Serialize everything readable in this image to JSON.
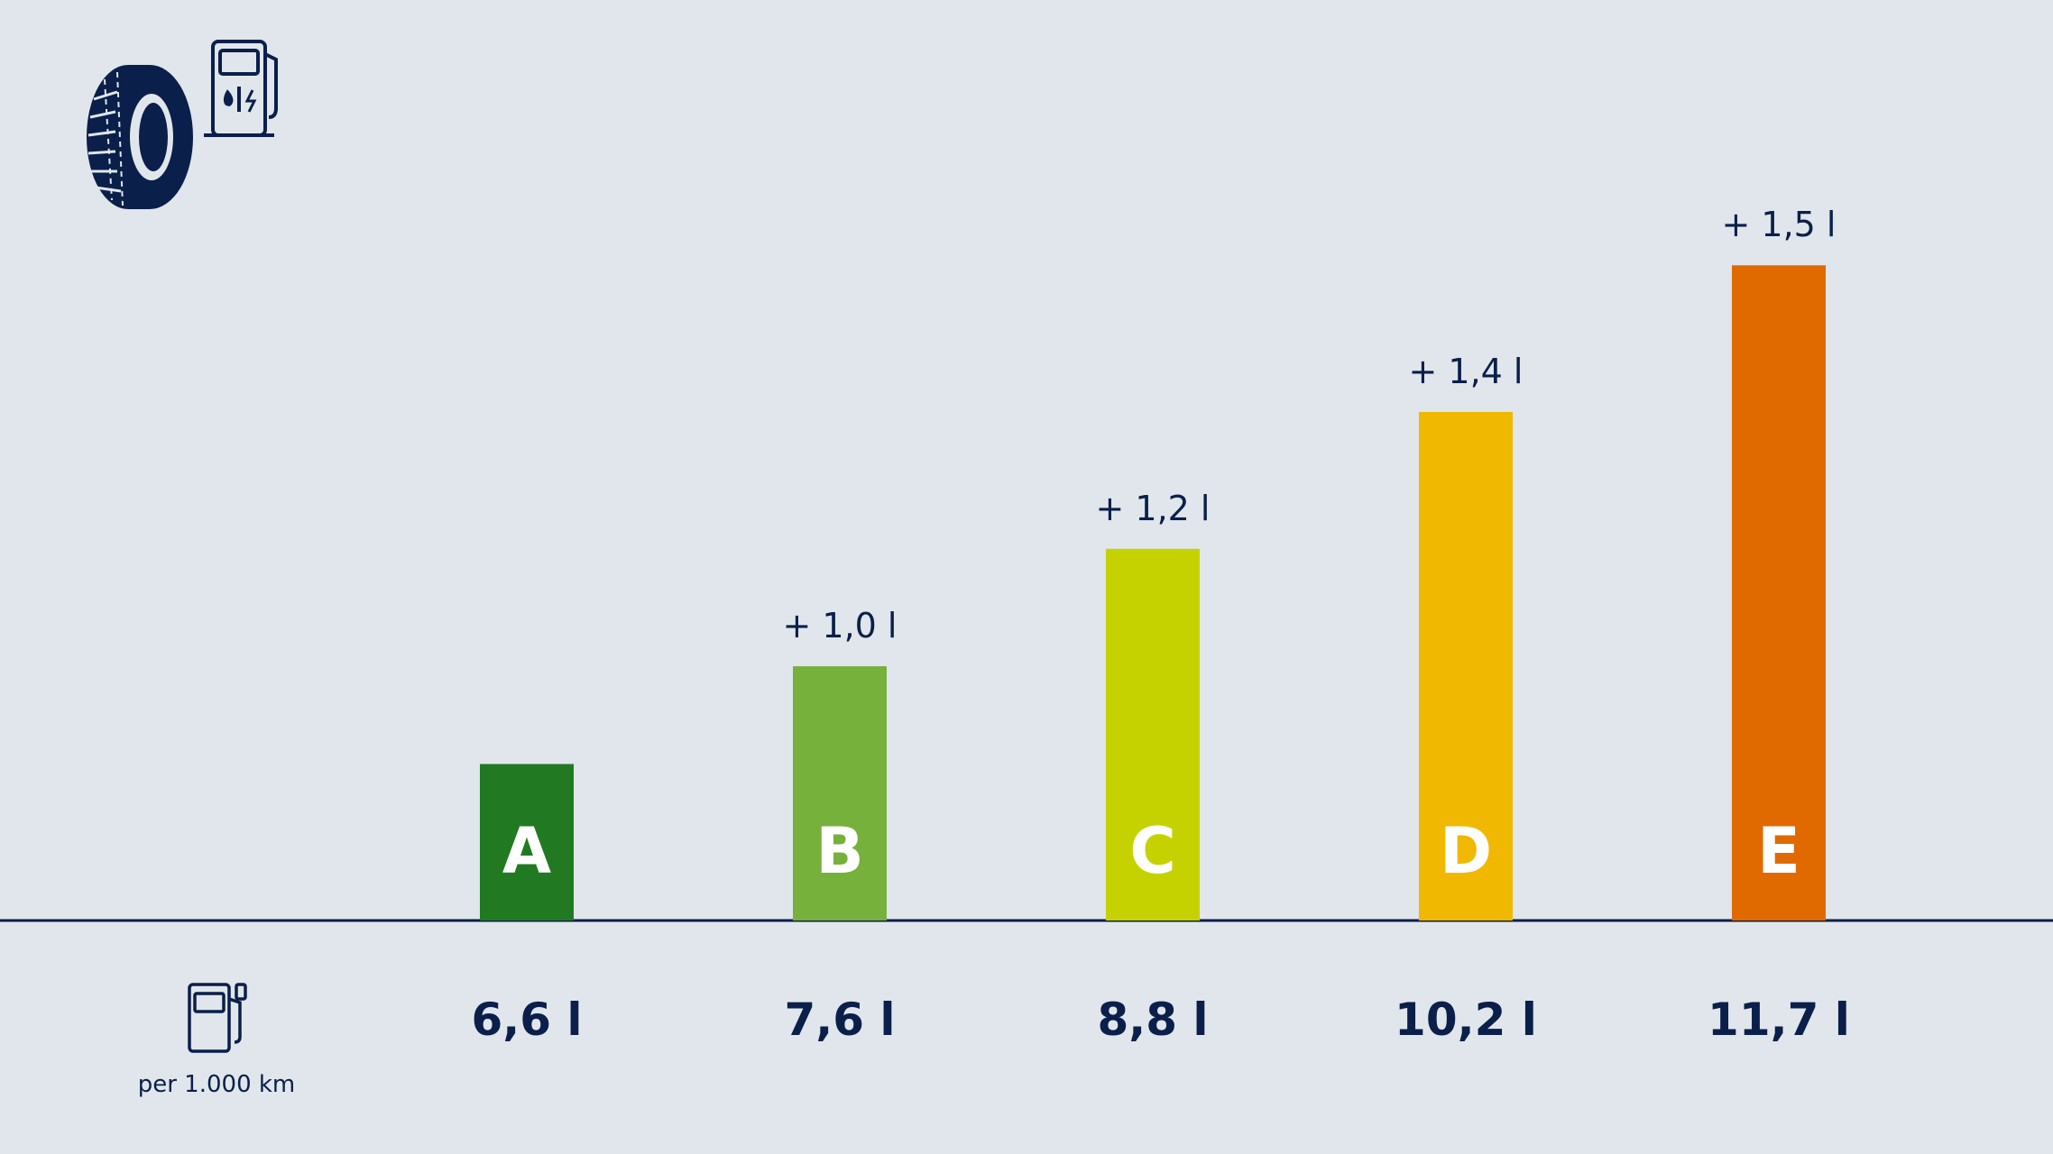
{
  "icons": {
    "tire": "tire-icon",
    "fuel_charging_station": "fuel-charging-station-icon",
    "fuel_pump": "fuel-pump-icon"
  },
  "colors": {
    "background": "#e0e6eb",
    "text": "#0a1f4a",
    "baseline": "#0a1f4a",
    "bar_letter": "#ffffff"
  },
  "row_label": "per 1.000 km",
  "chart_data": {
    "type": "bar",
    "categories": [
      "A",
      "B",
      "C",
      "D",
      "E"
    ],
    "values": [
      6.6,
      7.6,
      8.8,
      10.2,
      11.7
    ],
    "value_labels": [
      "6,6 l",
      "7,6 l",
      "8,8 l",
      "10,2 l",
      "11,7 l"
    ],
    "increment_labels": [
      "",
      "+ 1,0 l",
      "+ 1,2 l",
      "+ 1,4 l",
      "+ 1,5 l"
    ],
    "colors": [
      "#217a22",
      "#76b13c",
      "#c6d200",
      "#f0b800",
      "#e06a00"
    ],
    "ylim": [
      5.0,
      12.2
    ],
    "title": "",
    "xlabel": "",
    "ylabel": "",
    "grid": false,
    "legend": "none"
  }
}
